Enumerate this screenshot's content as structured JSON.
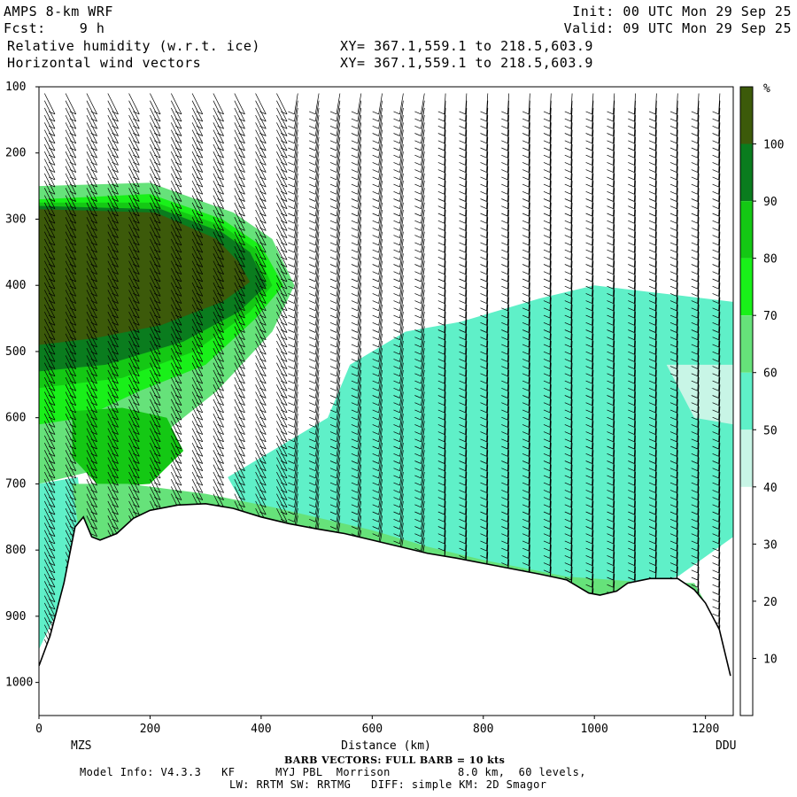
{
  "header": {
    "model_title": "AMPS 8-km WRF",
    "fcst_label": "Fcst:    9 h",
    "field_label": "Relative humidity (w.r.t. ice)",
    "vector_label": "Horizontal wind vectors",
    "xy_1": "XY= 367.1,559.1 to 218.5,603.9",
    "xy_2": "XY= 367.1,559.1 to 218.5,603.9",
    "init": "Init: 00 UTC Mon 29 Sep 25",
    "valid": "Valid: 09 UTC Mon 29 Sep 25"
  },
  "footer": {
    "barb_note": "BARB VECTORS: FULL BARB = 10 kts",
    "model_info": "Model Info: V4.3.3   KF      MYJ PBL  Morrison          8.0 km,  60 levels,",
    "physics": "LW: RRTM SW: RRTMG   DIFF: simple KM: 2D Smagor"
  },
  "colorbar": {
    "unit": "%",
    "levels": [
      10,
      20,
      30,
      40,
      50,
      60,
      70,
      80,
      90,
      100
    ],
    "colors": [
      "#ffffff",
      "#ffffff",
      "#ffffff",
      "#c8f5e6",
      "#5ff0c8",
      "#66e27a",
      "#19f019",
      "#14c814",
      "#0a7c1e",
      "#3c5a0a"
    ]
  },
  "chart_data": {
    "type": "heatmap",
    "xlabel": "Distance (km)",
    "ylabel": "",
    "x_ticks": [
      0,
      200,
      400,
      600,
      800,
      1000,
      1200
    ],
    "y_ticks": [
      100,
      200,
      300,
      400,
      500,
      600,
      700,
      800,
      900,
      1000
    ],
    "xlim": [
      0,
      1250
    ],
    "ylim": [
      1050,
      100
    ],
    "left_station": "MZS",
    "right_station": "DDU",
    "terrain_pressure": [
      [
        0,
        975
      ],
      [
        20,
        930
      ],
      [
        45,
        850
      ],
      [
        65,
        765
      ],
      [
        80,
        750
      ],
      [
        95,
        780
      ],
      [
        110,
        785
      ],
      [
        140,
        775
      ],
      [
        170,
        752
      ],
      [
        200,
        740
      ],
      [
        250,
        732
      ],
      [
        300,
        730
      ],
      [
        350,
        737
      ],
      [
        400,
        750
      ],
      [
        450,
        760
      ],
      [
        500,
        768
      ],
      [
        550,
        775
      ],
      [
        600,
        785
      ],
      [
        650,
        795
      ],
      [
        700,
        805
      ],
      [
        750,
        812
      ],
      [
        800,
        820
      ],
      [
        850,
        828
      ],
      [
        900,
        836
      ],
      [
        950,
        845
      ],
      [
        990,
        865
      ],
      [
        1010,
        868
      ],
      [
        1040,
        862
      ],
      [
        1060,
        850
      ],
      [
        1100,
        843
      ],
      [
        1150,
        843
      ],
      [
        1180,
        860
      ],
      [
        1200,
        880
      ],
      [
        1225,
        920
      ],
      [
        1245,
        990
      ]
    ],
    "rh_regions": [
      {
        "level": 50,
        "pts": [
          [
            520,
            600
          ],
          [
            560,
            520
          ],
          [
            660,
            470
          ],
          [
            760,
            455
          ],
          [
            900,
            420
          ],
          [
            1000,
            400
          ],
          [
            1100,
            410
          ],
          [
            1250,
            425
          ],
          [
            1250,
            780
          ],
          [
            1150,
            840
          ],
          [
            1000,
            868
          ],
          [
            700,
            805
          ],
          [
            380,
            750
          ],
          [
            340,
            690
          ]
        ]
      },
      {
        "level": 40,
        "pts": [
          [
            1130,
            520
          ],
          [
            1250,
            520
          ],
          [
            1250,
            610
          ],
          [
            1180,
            600
          ]
        ]
      },
      {
        "level": 50,
        "pts": [
          [
            0,
            700
          ],
          [
            70,
            690
          ],
          [
            80,
            760
          ],
          [
            40,
            880
          ],
          [
            0,
            950
          ]
        ]
      },
      {
        "level": 60,
        "pts": [
          [
            0,
            250
          ],
          [
            200,
            245
          ],
          [
            350,
            290
          ],
          [
            420,
            330
          ],
          [
            460,
            400
          ],
          [
            420,
            470
          ],
          [
            320,
            560
          ],
          [
            200,
            640
          ],
          [
            100,
            680
          ],
          [
            0,
            700
          ]
        ]
      },
      {
        "level": 70,
        "pts": [
          [
            0,
            270
          ],
          [
            200,
            262
          ],
          [
            330,
            300
          ],
          [
            400,
            340
          ],
          [
            440,
            400
          ],
          [
            390,
            450
          ],
          [
            300,
            520
          ],
          [
            180,
            560
          ],
          [
            80,
            600
          ],
          [
            0,
            610
          ]
        ]
      },
      {
        "level": 80,
        "pts": [
          [
            0,
            275
          ],
          [
            210,
            275
          ],
          [
            330,
            310
          ],
          [
            390,
            345
          ],
          [
            420,
            400
          ],
          [
            380,
            440
          ],
          [
            280,
            500
          ],
          [
            150,
            540
          ],
          [
            0,
            555
          ]
        ]
      },
      {
        "level": 90,
        "pts": [
          [
            0,
            280
          ],
          [
            220,
            285
          ],
          [
            330,
            320
          ],
          [
            380,
            350
          ],
          [
            410,
            400
          ],
          [
            360,
            440
          ],
          [
            260,
            485
          ],
          [
            120,
            520
          ],
          [
            0,
            530
          ]
        ]
      },
      {
        "level": 100,
        "pts": [
          [
            0,
            285
          ],
          [
            210,
            290
          ],
          [
            320,
            330
          ],
          [
            360,
            365
          ],
          [
            380,
            395
          ],
          [
            330,
            425
          ],
          [
            220,
            460
          ],
          [
            100,
            480
          ],
          [
            0,
            490
          ]
        ]
      },
      {
        "level": 80,
        "pts": [
          [
            60,
            590
          ],
          [
            150,
            585
          ],
          [
            230,
            600
          ],
          [
            260,
            650
          ],
          [
            200,
            700
          ],
          [
            110,
            705
          ],
          [
            60,
            660
          ]
        ]
      },
      {
        "level": 60,
        "pts": [
          [
            60,
            700
          ],
          [
            160,
            700
          ],
          [
            300,
            715
          ],
          [
            420,
            735
          ],
          [
            600,
            770
          ],
          [
            700,
            795
          ],
          [
            800,
            815
          ],
          [
            950,
            840
          ],
          [
            1080,
            848
          ],
          [
            1180,
            850
          ],
          [
            1200,
            880
          ],
          [
            1100,
            860
          ],
          [
            1000,
            872
          ],
          [
            800,
            825
          ],
          [
            600,
            790
          ],
          [
            400,
            760
          ],
          [
            250,
            740
          ],
          [
            110,
            790
          ],
          [
            70,
            760
          ]
        ]
      },
      {
        "level": 30,
        "pts": [
          [
            0,
            100
          ],
          [
            1250,
            100
          ],
          [
            1250,
            105
          ],
          [
            0,
            105
          ]
        ]
      }
    ]
  }
}
